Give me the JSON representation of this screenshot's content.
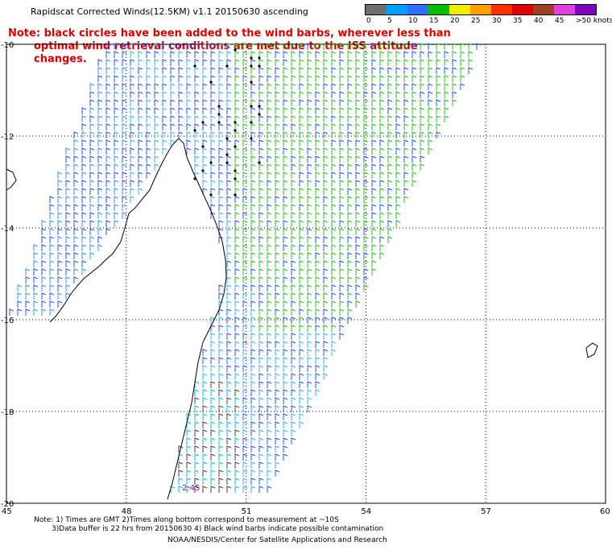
{
  "title": "Rapidscat Corrected Winds(12.5KM) v1.1 20150630 ascending",
  "note": {
    "line1": "Note: black circles have been added to the wind barbs, wherever less than",
    "line2": "optimal wind retrieval conditions are met due to the ISS attitude changes."
  },
  "legend": {
    "unit": "knots",
    "labels": [
      "0",
      "5",
      "10",
      "15",
      "20",
      "25",
      "30",
      "35",
      "40",
      "45",
      ">50 knots"
    ],
    "colors": [
      "#707070",
      "#00a0ff",
      "#3070ff",
      "#00c000",
      "#f0f000",
      "#ffa000",
      "#ff3000",
      "#e00000",
      "#a04020",
      "#e040e0",
      "#8000c0"
    ]
  },
  "map": {
    "lat_labels": [
      "-10",
      "-12",
      "-14",
      "-16",
      "-18",
      "-20"
    ],
    "lon_labels": [
      "45",
      "48",
      "51",
      "54",
      "57",
      "60"
    ],
    "lat_range": [
      -20,
      -10
    ],
    "lon_range": [
      45,
      60
    ],
    "annotation": "2:45"
  },
  "footer": {
    "line1": "Note: 1) Times are GMT 2)Times along bottom correspond to measurement at ~10S",
    "line2": "3)Data buffer is 22 hrs from 20150630 4) Black wind barbs indicate possible contamination",
    "line3": "NOAA/NESDIS/Center for Satellite Applications and Research"
  }
}
